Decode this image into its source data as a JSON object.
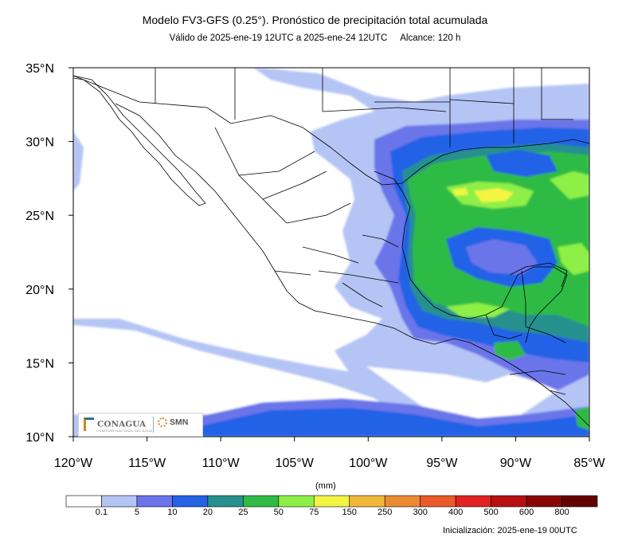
{
  "title": "Modelo FV3-GFS (0.25°). Pronóstico de precipitación total acumulada",
  "subtitle": {
    "validity": "Válido de 2025-ene-19 12UTC a 2025-ene-24 12UTC",
    "range": "Alcance: 120 h"
  },
  "axes": {
    "lon_range": [
      -120,
      -85
    ],
    "lat_range": [
      10,
      35
    ],
    "lon_labels": [
      "120°W",
      "115°W",
      "110°W",
      "105°W",
      "100°W",
      "95°W",
      "90°W",
      "85°W"
    ],
    "lat_labels": [
      "35°N",
      "30°N",
      "25°N",
      "20°N",
      "15°N",
      "10°N"
    ]
  },
  "colorbar": {
    "units": "(mm)",
    "thresholds": [
      "0.1",
      "5",
      "10",
      "20",
      "25",
      "50",
      "75",
      "150",
      "250",
      "300",
      "400",
      "500",
      "600",
      "800"
    ],
    "colors": [
      "#ffffff",
      "#b4c4f5",
      "#6b74ea",
      "#2462e6",
      "#27908e",
      "#2fbb45",
      "#8ef046",
      "#f4f442",
      "#f0ba38",
      "#ec8a32",
      "#ea5a2a",
      "#e22222",
      "#b81010",
      "#8a0606",
      "#640202"
    ]
  },
  "logos": {
    "left_text": "CONAGUA",
    "left_sub": "COMISIÓN NACIONAL DEL AGUA",
    "right_text": "SMN"
  },
  "init_label": "Inicialización: 2025-ene-19 00UTC"
}
